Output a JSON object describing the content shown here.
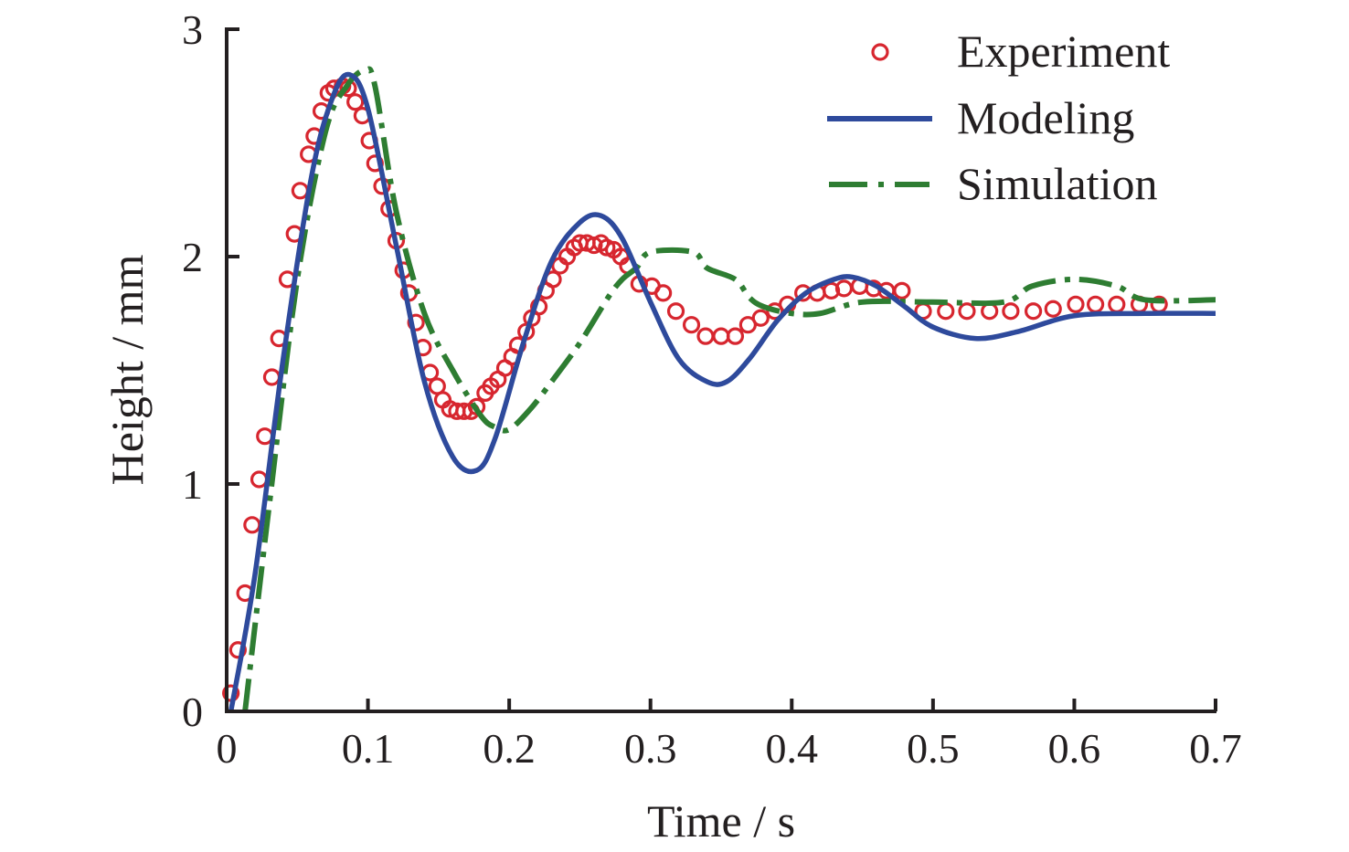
{
  "chart_data": {
    "type": "line",
    "title": "",
    "xlabel": "Time / s",
    "ylabel": "Height / mm",
    "xlim": [
      0,
      0.7
    ],
    "ylim": [
      0,
      3
    ],
    "xticks": [
      0,
      0.1,
      0.2,
      0.3,
      0.4,
      0.5,
      0.6,
      0.7
    ],
    "xtick_labels": [
      "0",
      "0.1",
      "0.2",
      "0.3",
      "0.4",
      "0.5",
      "0.6",
      "0.7"
    ],
    "yticks": [
      0,
      1,
      2,
      3
    ],
    "ytick_labels": [
      "0",
      "1",
      "2",
      "3"
    ],
    "grid": false,
    "legend_position": "top-right",
    "series": [
      {
        "name": "Experiment",
        "style": "markers-circle",
        "color": "#d7262f",
        "x": [
          0.003,
          0.008,
          0.013,
          0.018,
          0.023,
          0.027,
          0.032,
          0.037,
          0.043,
          0.048,
          0.052,
          0.058,
          0.062,
          0.067,
          0.072,
          0.076,
          0.082,
          0.086,
          0.091,
          0.096,
          0.101,
          0.105,
          0.11,
          0.115,
          0.12,
          0.125,
          0.129,
          0.134,
          0.139,
          0.144,
          0.149,
          0.153,
          0.158,
          0.163,
          0.168,
          0.173,
          0.177,
          0.183,
          0.187,
          0.192,
          0.197,
          0.202,
          0.206,
          0.212,
          0.216,
          0.221,
          0.226,
          0.231,
          0.236,
          0.241,
          0.246,
          0.25,
          0.255,
          0.26,
          0.265,
          0.269,
          0.274,
          0.279,
          0.284,
          0.292,
          0.301,
          0.309,
          0.318,
          0.329,
          0.339,
          0.35,
          0.36,
          0.369,
          0.378,
          0.388,
          0.397,
          0.408,
          0.418,
          0.428,
          0.437,
          0.448,
          0.458,
          0.467,
          0.478,
          0.493,
          0.509,
          0.524,
          0.54,
          0.555,
          0.571,
          0.585,
          0.601,
          0.615,
          0.63,
          0.646,
          0.66
        ],
        "y": [
          0.08,
          0.27,
          0.52,
          0.82,
          1.02,
          1.21,
          1.47,
          1.64,
          1.9,
          2.1,
          2.29,
          2.45,
          2.53,
          2.64,
          2.72,
          2.74,
          2.75,
          2.74,
          2.68,
          2.62,
          2.51,
          2.41,
          2.31,
          2.21,
          2.07,
          1.94,
          1.84,
          1.71,
          1.6,
          1.49,
          1.43,
          1.37,
          1.33,
          1.32,
          1.32,
          1.32,
          1.34,
          1.4,
          1.43,
          1.46,
          1.51,
          1.56,
          1.61,
          1.67,
          1.73,
          1.78,
          1.85,
          1.9,
          1.96,
          2.0,
          2.04,
          2.06,
          2.06,
          2.05,
          2.06,
          2.04,
          2.03,
          2.0,
          1.96,
          1.88,
          1.87,
          1.84,
          1.76,
          1.7,
          1.65,
          1.65,
          1.65,
          1.7,
          1.73,
          1.76,
          1.79,
          1.84,
          1.84,
          1.85,
          1.86,
          1.87,
          1.86,
          1.85,
          1.85,
          1.76,
          1.76,
          1.76,
          1.76,
          1.76,
          1.76,
          1.77,
          1.79,
          1.79,
          1.79,
          1.79,
          1.79
        ]
      },
      {
        "name": "Modeling",
        "style": "solid",
        "color": "#2e4a9c",
        "x": [
          0.003,
          0.02,
          0.04,
          0.06,
          0.075,
          0.087,
          0.1,
          0.12,
          0.14,
          0.16,
          0.177,
          0.19,
          0.21,
          0.23,
          0.25,
          0.265,
          0.28,
          0.3,
          0.32,
          0.34,
          0.354,
          0.37,
          0.39,
          0.41,
          0.43,
          0.443,
          0.46,
          0.48,
          0.5,
          0.53,
          0.56,
          0.6,
          0.65,
          0.7
        ],
        "y": [
          0.0,
          0.6,
          1.55,
          2.35,
          2.7,
          2.8,
          2.65,
          2.05,
          1.45,
          1.12,
          1.06,
          1.2,
          1.62,
          1.98,
          2.15,
          2.18,
          2.08,
          1.8,
          1.55,
          1.45,
          1.45,
          1.55,
          1.72,
          1.84,
          1.9,
          1.91,
          1.87,
          1.78,
          1.69,
          1.64,
          1.67,
          1.74,
          1.75,
          1.75
        ]
      },
      {
        "name": "Simulation",
        "style": "dash-dot",
        "color": "#2e7d32",
        "x": [
          0.013,
          0.03,
          0.05,
          0.07,
          0.085,
          0.098,
          0.105,
          0.12,
          0.14,
          0.16,
          0.18,
          0.19,
          0.2,
          0.215,
          0.23,
          0.25,
          0.27,
          0.28,
          0.29,
          0.3,
          0.33,
          0.34,
          0.36,
          0.37,
          0.38,
          0.4,
          0.42,
          0.45,
          0.5,
          0.55,
          0.57,
          0.6,
          0.63,
          0.65,
          0.7
        ],
        "y": [
          0.0,
          0.9,
          1.9,
          2.55,
          2.75,
          2.82,
          2.75,
          2.2,
          1.75,
          1.5,
          1.3,
          1.25,
          1.24,
          1.33,
          1.45,
          1.62,
          1.82,
          1.9,
          1.95,
          2.02,
          2.02,
          1.95,
          1.9,
          1.82,
          1.78,
          1.75,
          1.75,
          1.8,
          1.8,
          1.8,
          1.87,
          1.9,
          1.87,
          1.81,
          1.81
        ]
      }
    ]
  }
}
